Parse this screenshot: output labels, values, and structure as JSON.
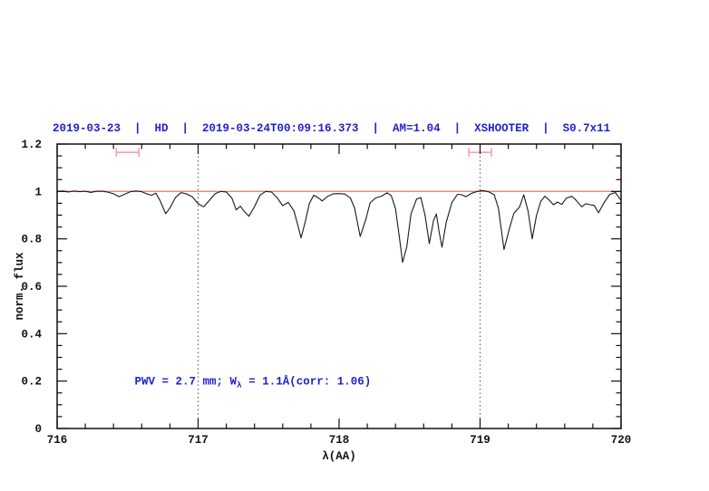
{
  "header": {
    "title": "2019-03-23  |  HD  |  2019-03-24T00:09:16.373  |  AM=1.04  |  XSHOOTER  |  S0.7x11",
    "color": "#2222cc"
  },
  "chart_data": {
    "type": "line",
    "title": "2019-03-23  |  HD  |  2019-03-24T00:09:16.373  |  AM=1.04  |  XSHOOTER  |  S0.7x11",
    "xlabel": "λ(AA)",
    "ylabel": "norm. flux",
    "xlim": [
      716,
      720
    ],
    "ylim": [
      0,
      1.2
    ],
    "grid": "off",
    "legend": "none",
    "axis_color": "#111111",
    "x_ticks": {
      "minor_step": 0.2,
      "major": [
        {
          "v": 716,
          "label": "716"
        },
        {
          "v": 717,
          "label": "717"
        },
        {
          "v": 718,
          "label": "718"
        },
        {
          "v": 719,
          "label": "719"
        },
        {
          "v": 720,
          "label": "720"
        }
      ]
    },
    "y_ticks": {
      "minor_step": 0.05,
      "major": [
        {
          "v": 0,
          "label": "0"
        },
        {
          "v": 0.2,
          "label": "0.2"
        },
        {
          "v": 0.4,
          "label": "0.4"
        },
        {
          "v": 0.6,
          "label": "0.6"
        },
        {
          "v": 0.8,
          "label": "0.8"
        },
        {
          "v": 1,
          "label": "1"
        },
        {
          "v": 1.2,
          "label": "1.2"
        }
      ]
    },
    "vlines": [
      {
        "x": 717,
        "style": "dotted",
        "color": "#555555"
      },
      {
        "x": 719,
        "style": "dotted",
        "color": "#555555"
      }
    ],
    "continuum": {
      "y": 1.0,
      "color": "#f4836f"
    },
    "range_markers": [
      {
        "x_center": 716.5,
        "half_width": 0.08,
        "y": 1.165,
        "color": "#ffa0a0"
      },
      {
        "x_center": 719.0,
        "half_width": 0.08,
        "y": 1.165,
        "color": "#ffa0a0"
      }
    ],
    "annotation": {
      "prefix": "PWV  =  2.7  mm;  W",
      "sub": "λ",
      "suffix": "  =  1.1Å(corr: 1.06)",
      "x": 716.55,
      "y": 0.185,
      "color": "#2222cc"
    },
    "series": [
      {
        "name": "spectrum",
        "color": "#1a1a1a",
        "points": [
          [
            716.0,
            1.0
          ],
          [
            716.04,
            1.002
          ],
          [
            716.08,
            0.998
          ],
          [
            716.12,
            1.002
          ],
          [
            716.16,
            0.999
          ],
          [
            716.2,
            1.001
          ],
          [
            716.24,
            0.996
          ],
          [
            716.28,
            1.001
          ],
          [
            716.32,
            1.001
          ],
          [
            716.36,
            0.997
          ],
          [
            716.4,
            0.99
          ],
          [
            716.44,
            0.978
          ],
          [
            716.48,
            0.989
          ],
          [
            716.52,
            0.999
          ],
          [
            716.56,
            1.002
          ],
          [
            716.6,
            0.999
          ],
          [
            716.64,
            0.989
          ],
          [
            716.67,
            0.984
          ],
          [
            716.7,
            0.993
          ],
          [
            716.73,
            0.962
          ],
          [
            716.77,
            0.906
          ],
          [
            716.8,
            0.93
          ],
          [
            716.84,
            0.975
          ],
          [
            716.88,
            0.995
          ],
          [
            716.92,
            0.989
          ],
          [
            716.96,
            0.977
          ],
          [
            717.0,
            0.948
          ],
          [
            717.04,
            0.935
          ],
          [
            717.08,
            0.962
          ],
          [
            717.12,
            0.99
          ],
          [
            717.16,
            1.0
          ],
          [
            717.2,
            0.998
          ],
          [
            717.24,
            0.972
          ],
          [
            717.27,
            0.922
          ],
          [
            717.3,
            0.938
          ],
          [
            717.33,
            0.914
          ],
          [
            717.36,
            0.895
          ],
          [
            717.4,
            0.936
          ],
          [
            717.44,
            0.985
          ],
          [
            717.48,
            1.0
          ],
          [
            717.52,
            0.998
          ],
          [
            717.56,
            0.974
          ],
          [
            717.6,
            0.94
          ],
          [
            717.64,
            0.954
          ],
          [
            717.68,
            0.918
          ],
          [
            717.71,
            0.852
          ],
          [
            717.73,
            0.804
          ],
          [
            717.76,
            0.872
          ],
          [
            717.79,
            0.95
          ],
          [
            717.82,
            0.984
          ],
          [
            717.85,
            0.974
          ],
          [
            717.88,
            0.96
          ],
          [
            717.92,
            0.98
          ],
          [
            717.96,
            0.99
          ],
          [
            718.0,
            0.991
          ],
          [
            718.04,
            0.989
          ],
          [
            718.08,
            0.973
          ],
          [
            718.11,
            0.93
          ],
          [
            718.15,
            0.81
          ],
          [
            718.19,
            0.882
          ],
          [
            718.22,
            0.952
          ],
          [
            718.26,
            0.973
          ],
          [
            718.3,
            0.98
          ],
          [
            718.34,
            0.994
          ],
          [
            718.37,
            0.983
          ],
          [
            718.4,
            0.928
          ],
          [
            718.43,
            0.795
          ],
          [
            718.45,
            0.701
          ],
          [
            718.48,
            0.765
          ],
          [
            718.51,
            0.905
          ],
          [
            718.55,
            0.968
          ],
          [
            718.58,
            0.974
          ],
          [
            718.61,
            0.898
          ],
          [
            718.64,
            0.78
          ],
          [
            718.67,
            0.878
          ],
          [
            718.69,
            0.905
          ],
          [
            718.71,
            0.828
          ],
          [
            718.73,
            0.765
          ],
          [
            718.76,
            0.87
          ],
          [
            718.8,
            0.953
          ],
          [
            718.84,
            0.988
          ],
          [
            718.87,
            0.986
          ],
          [
            718.9,
            0.978
          ],
          [
            718.94,
            0.992
          ],
          [
            718.98,
            1.0
          ],
          [
            719.02,
            1.004
          ],
          [
            719.06,
            0.999
          ],
          [
            719.1,
            0.986
          ],
          [
            719.13,
            0.93
          ],
          [
            719.17,
            0.755
          ],
          [
            719.21,
            0.848
          ],
          [
            719.24,
            0.908
          ],
          [
            719.28,
            0.934
          ],
          [
            719.31,
            0.986
          ],
          [
            719.34,
            0.918
          ],
          [
            719.37,
            0.8
          ],
          [
            719.4,
            0.898
          ],
          [
            719.43,
            0.958
          ],
          [
            719.46,
            0.98
          ],
          [
            719.49,
            0.964
          ],
          [
            719.52,
            0.944
          ],
          [
            719.55,
            0.955
          ],
          [
            719.58,
            0.945
          ],
          [
            719.61,
            0.971
          ],
          [
            719.65,
            0.98
          ],
          [
            719.68,
            0.964
          ],
          [
            719.72,
            0.935
          ],
          [
            719.75,
            0.948
          ],
          [
            719.78,
            0.944
          ],
          [
            719.81,
            0.941
          ],
          [
            719.84,
            0.91
          ],
          [
            719.88,
            0.953
          ],
          [
            719.92,
            0.988
          ],
          [
            719.96,
            0.995
          ],
          [
            720.0,
            0.962
          ]
        ]
      }
    ]
  }
}
